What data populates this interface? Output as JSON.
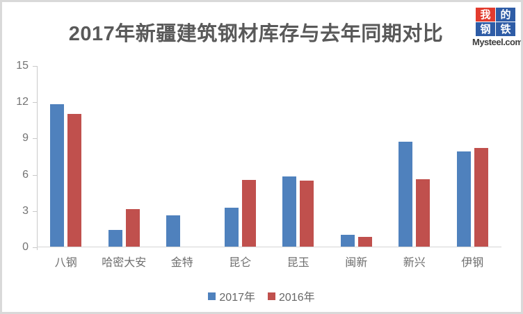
{
  "title": "2017年新疆建筑钢材库存与去年同期对比",
  "logo": {
    "cells": [
      {
        "char": "我",
        "bg": "#e23b2e"
      },
      {
        "char": "的",
        "bg": "#2e5ca6"
      },
      {
        "char": "钢",
        "bg": "#2e5ca6"
      },
      {
        "char": "铁",
        "bg": "#2e5ca6"
      }
    ],
    "domain": "Mysteel.com"
  },
  "chart_data": {
    "type": "bar",
    "categories": [
      "八钢",
      "哈密大安",
      "金特",
      "昆仑",
      "昆玉",
      "闽新",
      "新兴",
      "伊钢"
    ],
    "series": [
      {
        "name": "2017年",
        "color": "#4F81BD",
        "values": [
          11.8,
          1.4,
          2.6,
          3.2,
          5.8,
          1.0,
          8.65,
          7.85
        ]
      },
      {
        "name": "2016年",
        "color": "#C0504D",
        "values": [
          11.0,
          3.1,
          0,
          5.5,
          5.45,
          0.8,
          5.55,
          8.15
        ]
      }
    ],
    "title": "2017年新疆建筑钢材库存与去年同期对比",
    "xlabel": "",
    "ylabel": "",
    "ylim": [
      0,
      15
    ],
    "yticks": [
      0,
      3,
      6,
      9,
      12,
      15
    ],
    "grid": false,
    "legend_position": "bottom"
  }
}
